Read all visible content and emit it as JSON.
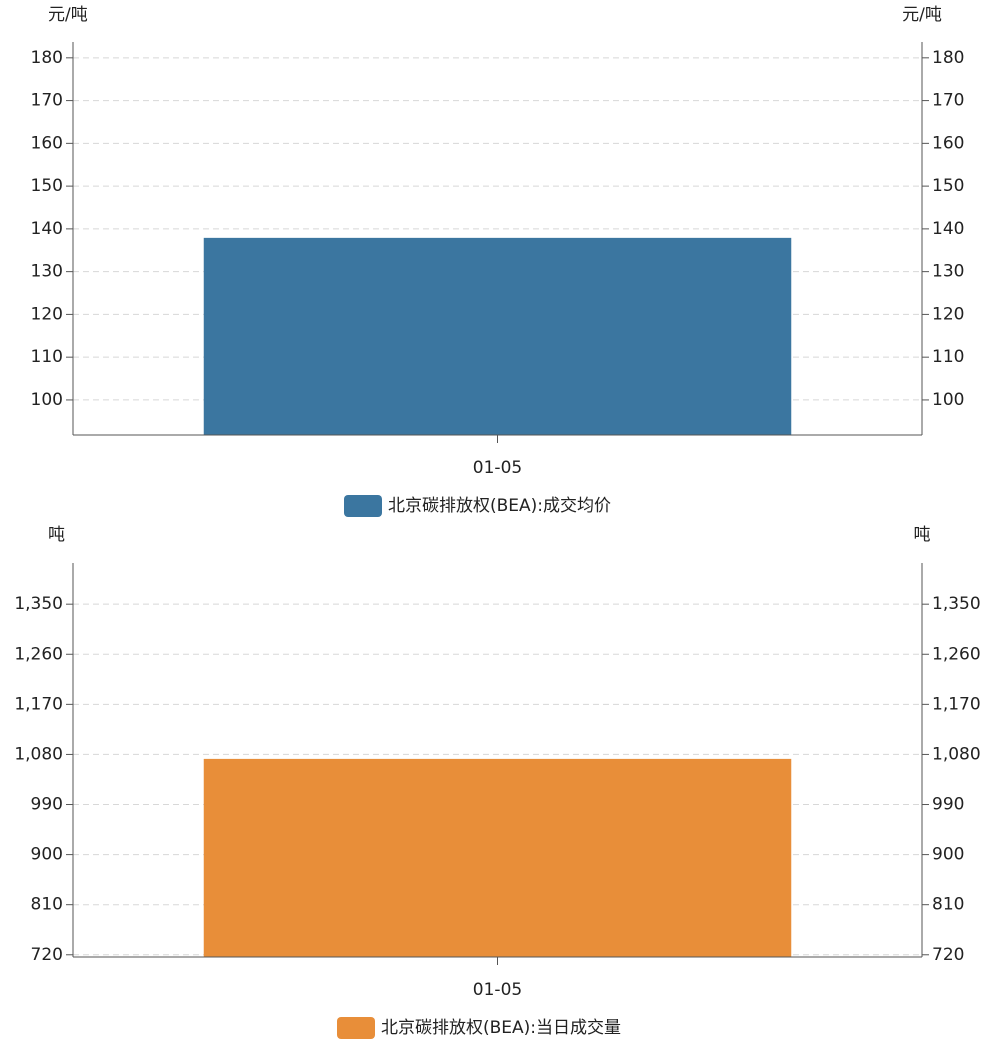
{
  "chart_data": [
    {
      "type": "bar",
      "y_axis_label": "元/吨",
      "y2_axis_label": "元/吨",
      "categories": [
        "01-05"
      ],
      "series": [
        {
          "name": "北京碳排放权(BEA):成交均价",
          "color": "#3b76a0",
          "values": [
            137.9
          ]
        }
      ],
      "ylim": [
        91.8,
        183.7
      ],
      "yticks": [
        100,
        110,
        120,
        130,
        140,
        150,
        160,
        170,
        180
      ],
      "grid": true
    },
    {
      "type": "bar",
      "y_axis_label": "吨",
      "y2_axis_label": "吨",
      "categories": [
        "01-05"
      ],
      "series": [
        {
          "name": "北京碳排放权(BEA):当日成交量",
          "color": "#e88e39",
          "values": [
            1072
          ]
        }
      ],
      "ylim": [
        716,
        1424
      ],
      "yticks": [
        720,
        810,
        900,
        990,
        {
          "value": 1080,
          "label": "1,080"
        },
        {
          "value": 1170,
          "label": "1,170"
        },
        {
          "value": 1260,
          "label": "1,260"
        },
        {
          "value": 1350,
          "label": "1,350"
        }
      ],
      "grid": true
    }
  ]
}
